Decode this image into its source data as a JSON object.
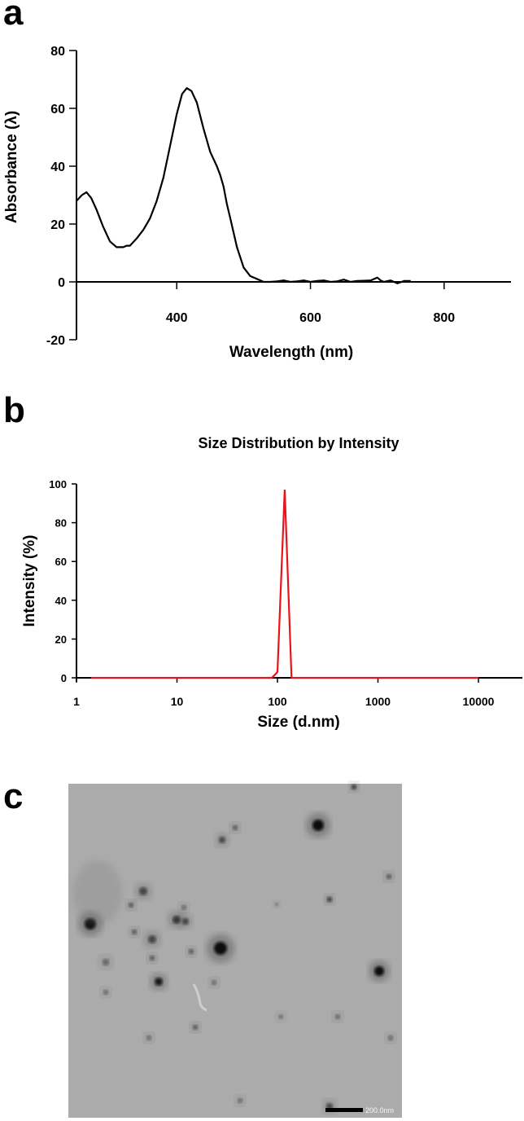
{
  "panels": {
    "a": "a",
    "b": "b",
    "c": "c"
  },
  "chart_data": [
    {
      "type": "line",
      "title": "",
      "xlabel": "Wavelength (nm)",
      "ylabel": "Absorbance (λ)",
      "xlim": [
        250,
        900
      ],
      "ylim": [
        -20,
        80
      ],
      "xticks": [
        400,
        600,
        800
      ],
      "yticks": [
        -20,
        0,
        20,
        40,
        60,
        80
      ],
      "grid": false,
      "line_color": "#000000",
      "series": [
        {
          "x": [
            250,
            258,
            265,
            272,
            280,
            290,
            300,
            310,
            320,
            325,
            330,
            340,
            350,
            360,
            370,
            380,
            390,
            400,
            408,
            415,
            422,
            430,
            440,
            450,
            460,
            465,
            470,
            475,
            480,
            490,
            500,
            510,
            520,
            530,
            540,
            550,
            560,
            570,
            580,
            590,
            600,
            610,
            620,
            630,
            640,
            650,
            660,
            670,
            680,
            690,
            700,
            705,
            710,
            720,
            730,
            740,
            750
          ],
          "y": [
            28,
            30,
            31,
            29,
            25,
            19,
            14,
            12,
            12,
            12.5,
            12.5,
            15,
            18,
            22,
            28,
            36,
            47,
            58,
            65,
            67,
            66,
            62,
            53,
            45,
            40,
            37,
            33,
            27,
            22,
            12,
            5,
            2,
            1,
            0,
            0,
            0.2,
            0.5,
            0,
            0.2,
            0.5,
            0,
            0.3,
            0.5,
            0,
            0.2,
            0.8,
            0,
            0.3,
            0.4,
            0.5,
            1.5,
            0.5,
            0,
            0.5,
            -0.5,
            0.3,
            0.3
          ]
        }
      ]
    },
    {
      "type": "line",
      "title": "Size Distribution by Intensity",
      "xlabel": "Size (d.nm)",
      "ylabel": "Intensity (%)",
      "xscale": "log",
      "xlim": [
        1,
        25000
      ],
      "ylim": [
        0,
        100
      ],
      "xticks": [
        "1",
        "10",
        "100",
        "1000",
        "10000"
      ],
      "yticks": [
        "0",
        "20",
        "40",
        "60",
        "80",
        "100"
      ],
      "grid": false,
      "line_color": "#e8141b",
      "series": [
        {
          "x": [
            1.4,
            88,
            100,
            118,
            138,
            10000
          ],
          "y": [
            0,
            0,
            3,
            97,
            0,
            0
          ]
        }
      ]
    }
  ],
  "micrograph": {
    "scale_bar_label": "200.0nm",
    "background_color": "#a9a9a9"
  }
}
